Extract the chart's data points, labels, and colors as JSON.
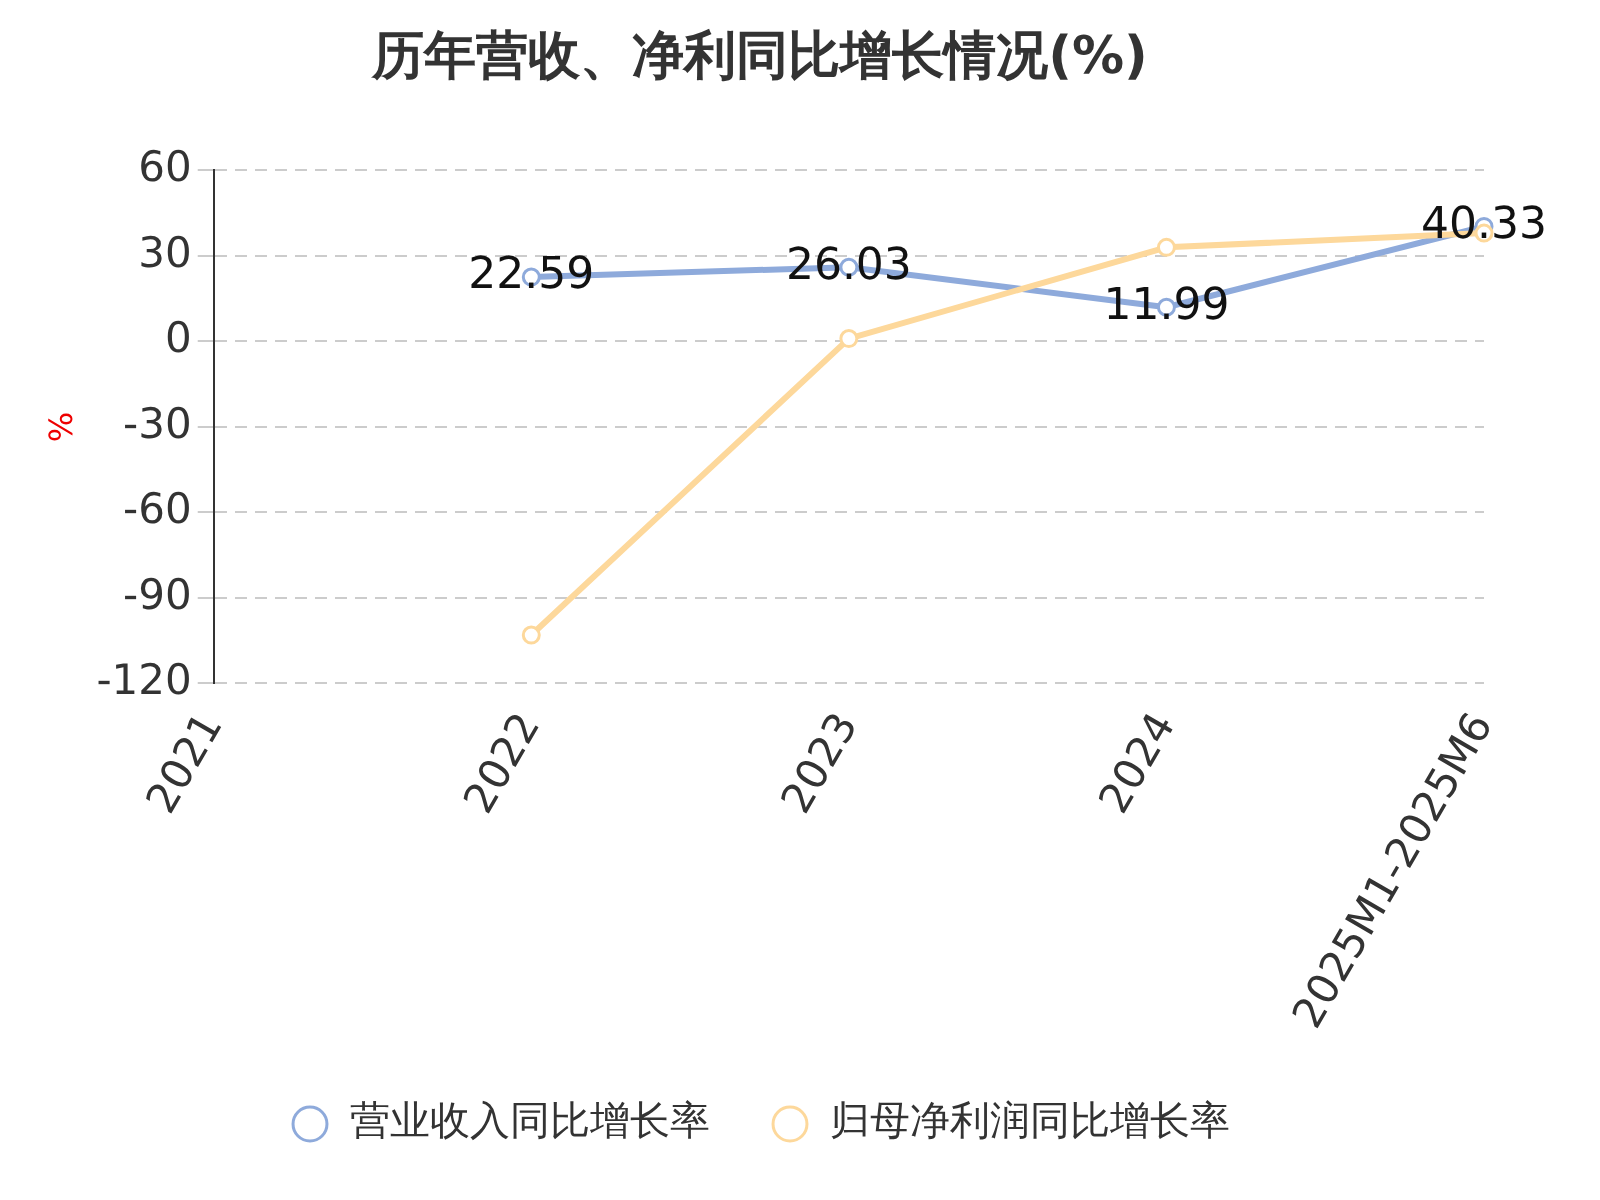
{
  "chart_data": {
    "type": "line",
    "title": "历年营收、净利同比增长情况(%)",
    "ylabel": "%",
    "categories": [
      "2021",
      "2022",
      "2023",
      "2024",
      "2025M1-2025M6"
    ],
    "series": [
      {
        "name": "营业收入同比增长率",
        "color": "#8eaadb",
        "values": [
          null,
          22.59,
          26.03,
          11.99,
          40.33
        ],
        "value_labels": [
          null,
          "22.59",
          "26.03",
          "11.99",
          "40.33"
        ]
      },
      {
        "name": "归母净利润同比增长率",
        "color": "#fdd89b",
        "values": [
          null,
          -103,
          1,
          33,
          38
        ]
      }
    ],
    "ylim": [
      -120,
      60
    ],
    "yticks": [
      -120,
      -90,
      -60,
      -30,
      0,
      30,
      60
    ],
    "grid": "y",
    "legend": "bottom",
    "marker": "circle",
    "line_style": "solid"
  }
}
